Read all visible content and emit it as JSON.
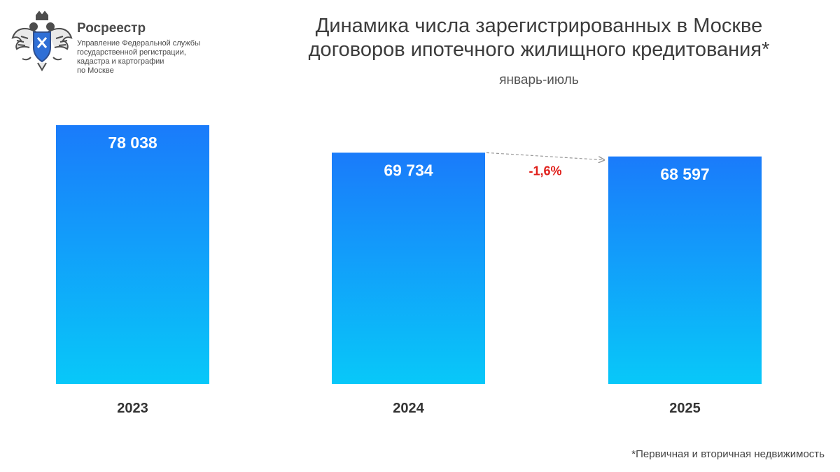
{
  "header": {
    "brand_name": "Росреестр",
    "brand_subtitle_lines": [
      "Управление Федеральной службы",
      "государственной регистрации,",
      "кадастра и картографии",
      "по Москве"
    ],
    "logo_icon": "double-headed-eagle-emblem-icon"
  },
  "colors": {
    "bar_top": "#1a7bfa",
    "bar_bottom": "#08c8f9",
    "change_label": "#e0201b",
    "value_label": "#ffffff",
    "axis_label": "#333333"
  },
  "chart_data": {
    "type": "bar",
    "title": "Динамика числа зарегистрированных в Москве договоров ипотечного жилищного кредитования*",
    "title_lines": [
      "Динамика числа зарегистрированных в Москве",
      "договоров ипотечного жилищного кредитования*"
    ],
    "subtitle": "январь-июль",
    "categories": [
      "2023",
      "2024",
      "2025"
    ],
    "values": [
      78038,
      69734,
      68597
    ],
    "value_labels": [
      "78 038",
      "69 734",
      "68 597"
    ],
    "ylim": [
      0,
      78038
    ],
    "grid": false,
    "legend": "none",
    "annotations": [
      {
        "from_category": "2024",
        "to_category": "2025",
        "text": "-1,6%",
        "style": "dashed-arrow"
      }
    ]
  },
  "footnote": "*Первичная и вторичная недвижимость"
}
